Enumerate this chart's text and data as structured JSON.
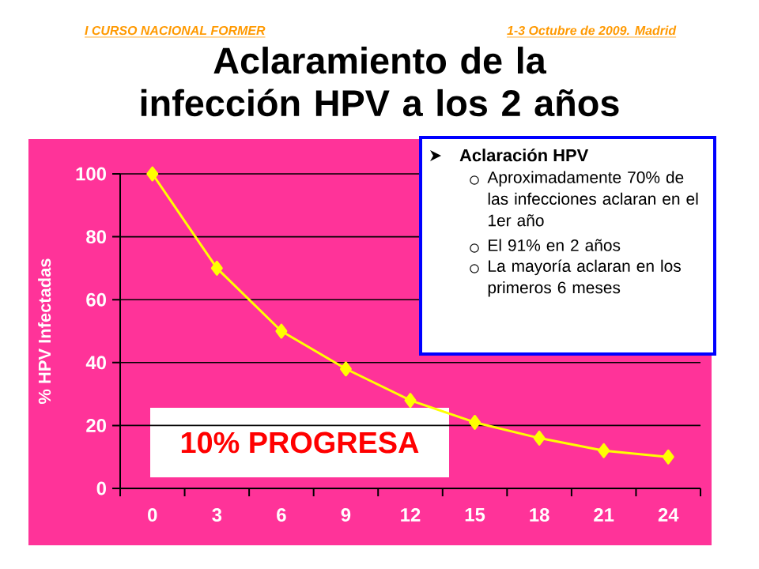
{
  "chart_data": {
    "type": "line",
    "title": "Aclaramiento de la infección HPV a los 2 años",
    "ylabel": "% HPV Infectadas",
    "categories": [
      "0",
      "3",
      "6",
      "9",
      "12",
      "15",
      "18",
      "21",
      "24"
    ],
    "series": [
      {
        "color": "#ffff00",
        "values": [
          100,
          70,
          50,
          38,
          28,
          21,
          16,
          12,
          10
        ]
      }
    ],
    "ylim": [
      0,
      100
    ],
    "yticks": [
      0,
      20,
      40,
      60,
      80,
      100
    ],
    "grid": "y",
    "marker": "diamond",
    "line_style": "solid",
    "annotations": [
      "I CURSO NACIONAL FORMER",
      "1-3 Octubre de 2009. Madrid",
      "10% PROGRESA",
      "Aclaración HPV",
      "Aproximadamente 70% de las infecciones aclaran en el 1er año",
      "El 91% en 2 años",
      "La mayoría aclaran en los primeros 6 meses"
    ]
  }
}
